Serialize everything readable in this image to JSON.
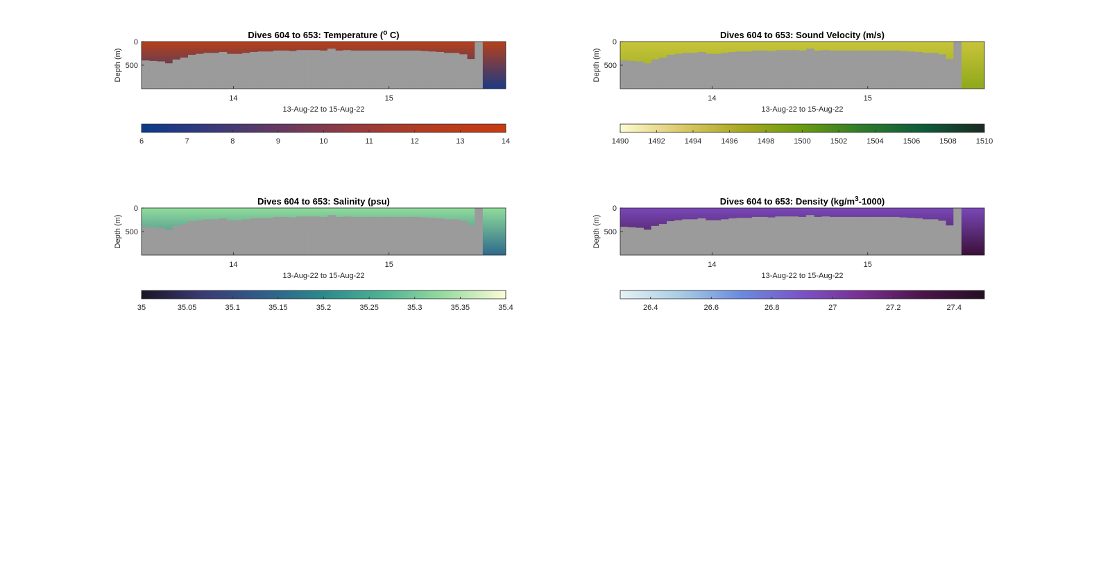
{
  "chart_data": [
    {
      "type": "heatmap",
      "title_main": "Dives 604 to 653: Temperature (",
      "title_sup": "o",
      "title_tail": " C)",
      "xlabel": "13-Aug-22 to 15-Aug-22",
      "ylabel": "Depth (m)",
      "ylim": [
        1000,
        0
      ],
      "yticks": [
        0,
        500
      ],
      "ytick_labels": [
        "0",
        "500"
      ],
      "xlim": [
        13.41,
        15.75
      ],
      "xticks": [
        14,
        15
      ],
      "xtick_labels": [
        "14",
        "15"
      ],
      "bottom_depth": [
        400,
        410,
        420,
        460,
        380,
        340,
        280,
        260,
        240,
        240,
        220,
        260,
        260,
        240,
        220,
        210,
        210,
        190,
        190,
        200,
        180,
        180,
        180,
        190,
        150,
        190,
        180,
        190,
        190,
        190,
        190,
        190,
        190,
        190,
        190,
        190,
        200,
        210,
        220,
        240,
        240,
        270,
        370,
        0,
        1000,
        1000,
        1000
      ],
      "surface_color": "#b5401b",
      "deep_color": "#1c3a84",
      "colorbar": {
        "min": 6,
        "max": 14,
        "ticks": [
          "6",
          "7",
          "8",
          "9",
          "10",
          "11",
          "12",
          "13",
          "14"
        ],
        "colors": [
          "#0a3a8c",
          "#3a3a7a",
          "#6a3a5e",
          "#9a3a3c",
          "#b53c1e",
          "#c83c10"
        ]
      }
    },
    {
      "type": "heatmap",
      "title_main": "Dives 604 to 653: Sound Velocity (m/s)",
      "title_sup": "",
      "title_tail": "",
      "xlabel": "13-Aug-22 to 15-Aug-22",
      "ylabel": "Depth (m)",
      "ylim": [
        1000,
        0
      ],
      "yticks": [
        0,
        500
      ],
      "ytick_labels": [
        "0",
        "500"
      ],
      "xlim": [
        13.41,
        15.75
      ],
      "xticks": [
        14,
        15
      ],
      "xtick_labels": [
        "14",
        "15"
      ],
      "bottom_depth": [
        400,
        410,
        420,
        460,
        380,
        340,
        280,
        260,
        240,
        240,
        220,
        260,
        260,
        240,
        220,
        210,
        210,
        190,
        190,
        200,
        180,
        180,
        180,
        190,
        150,
        190,
        180,
        190,
        190,
        190,
        190,
        190,
        190,
        190,
        190,
        190,
        200,
        210,
        220,
        240,
        240,
        270,
        370,
        0,
        1000,
        1000,
        1000
      ],
      "surface_color": "#c8c43a",
      "deep_color": "#8fa81a",
      "colorbar": {
        "min": 1490,
        "max": 1510,
        "ticks": [
          "1490",
          "1492",
          "1494",
          "1496",
          "1498",
          "1500",
          "1502",
          "1504",
          "1506",
          "1508",
          "1510"
        ],
        "colors": [
          "#fdfbd0",
          "#dcc96a",
          "#a8a820",
          "#6a9a10",
          "#2e7a2a",
          "#0e5a3a",
          "#1a2a22"
        ]
      }
    },
    {
      "type": "heatmap",
      "title_main": "Dives 604 to 653: Salinity (psu)",
      "title_sup": "",
      "title_tail": "",
      "xlabel": "13-Aug-22 to 15-Aug-22",
      "ylabel": "Depth (m)",
      "ylim": [
        1000,
        0
      ],
      "yticks": [
        0,
        500
      ],
      "ytick_labels": [
        "0",
        "500"
      ],
      "xlim": [
        13.41,
        15.75
      ],
      "xticks": [
        14,
        15
      ],
      "xtick_labels": [
        "14",
        "15"
      ],
      "bottom_depth": [
        400,
        410,
        420,
        460,
        380,
        340,
        280,
        260,
        240,
        240,
        220,
        260,
        260,
        240,
        220,
        210,
        210,
        190,
        190,
        200,
        180,
        180,
        180,
        190,
        150,
        190,
        180,
        190,
        190,
        190,
        190,
        190,
        190,
        190,
        190,
        190,
        200,
        210,
        220,
        240,
        240,
        270,
        370,
        0,
        1000,
        1000,
        1000
      ],
      "surface_color": "#8fdc9a",
      "deep_color": "#2e6a8c",
      "colorbar": {
        "min": 35,
        "max": 35.4,
        "ticks": [
          "35",
          "35.05",
          "35.1",
          "35.15",
          "35.2",
          "35.25",
          "35.3",
          "35.35",
          "35.4"
        ],
        "colors": [
          "#1a1424",
          "#3a3a74",
          "#2e5e8a",
          "#2a8a8c",
          "#4eb494",
          "#9adca0",
          "#fdfbd8"
        ]
      }
    },
    {
      "type": "heatmap",
      "title_main": "Dives 604 to 653: Density (kg/m",
      "title_sup": "3",
      "title_tail": "-1000)",
      "xlabel": "13-Aug-22 to 15-Aug-22",
      "ylabel": "Depth (m)",
      "ylim": [
        1000,
        0
      ],
      "yticks": [
        0,
        500
      ],
      "ytick_labels": [
        "0",
        "500"
      ],
      "xlim": [
        13.41,
        15.75
      ],
      "xticks": [
        14,
        15
      ],
      "xtick_labels": [
        "14",
        "15"
      ],
      "bottom_depth": [
        400,
        410,
        420,
        460,
        380,
        340,
        280,
        260,
        240,
        240,
        220,
        260,
        260,
        240,
        220,
        210,
        210,
        190,
        190,
        200,
        180,
        180,
        180,
        190,
        150,
        190,
        180,
        190,
        190,
        190,
        190,
        190,
        190,
        190,
        190,
        190,
        200,
        210,
        220,
        240,
        240,
        270,
        370,
        0,
        1000,
        1000,
        1000
      ],
      "surface_color": "#7a48b8",
      "deep_color": "#3a1038",
      "colorbar": {
        "min": 26.3,
        "max": 27.5,
        "ticks": [
          "26.4",
          "26.6",
          "26.8",
          "27",
          "27.2",
          "27.4"
        ],
        "tick_values": [
          26.4,
          26.6,
          26.8,
          27,
          27.2,
          27.4
        ],
        "colors": [
          "#e6f2f4",
          "#a8cce4",
          "#6a8ae0",
          "#7a52c8",
          "#782e90",
          "#4a1448",
          "#241024"
        ]
      }
    }
  ]
}
